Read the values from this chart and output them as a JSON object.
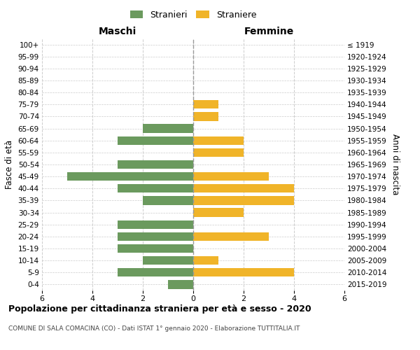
{
  "age_groups": [
    "100+",
    "95-99",
    "90-94",
    "85-89",
    "80-84",
    "75-79",
    "70-74",
    "65-69",
    "60-64",
    "55-59",
    "50-54",
    "45-49",
    "40-44",
    "35-39",
    "30-34",
    "25-29",
    "20-24",
    "15-19",
    "10-14",
    "5-9",
    "0-4"
  ],
  "birth_years": [
    "≤ 1919",
    "1920-1924",
    "1925-1929",
    "1930-1934",
    "1935-1939",
    "1940-1944",
    "1945-1949",
    "1950-1954",
    "1955-1959",
    "1960-1964",
    "1965-1969",
    "1970-1974",
    "1975-1979",
    "1980-1984",
    "1985-1989",
    "1990-1994",
    "1995-1999",
    "2000-2004",
    "2005-2009",
    "2010-2014",
    "2015-2019"
  ],
  "males": [
    0,
    0,
    0,
    0,
    0,
    0,
    0,
    2,
    3,
    0,
    3,
    5,
    3,
    2,
    0,
    3,
    3,
    3,
    2,
    3,
    1
  ],
  "females": [
    0,
    0,
    0,
    0,
    0,
    1,
    1,
    0,
    2,
    2,
    0,
    3,
    4,
    4,
    2,
    0,
    3,
    0,
    1,
    4,
    0
  ],
  "male_color": "#6b9a5e",
  "female_color": "#f0b429",
  "background_color": "#ffffff",
  "grid_color": "#cccccc",
  "title": "Popolazione per cittadinanza straniera per età e sesso - 2020",
  "subtitle": "COMUNE DI SALA COMACINA (CO) - Dati ISTAT 1° gennaio 2020 - Elaborazione TUTTITALIA.IT",
  "ylabel_left": "Fasce di età",
  "ylabel_right": "Anni di nascita",
  "legend_males": "Stranieri",
  "legend_females": "Straniere",
  "xlim": 6,
  "header_males": "Maschi",
  "header_females": "Femmine"
}
